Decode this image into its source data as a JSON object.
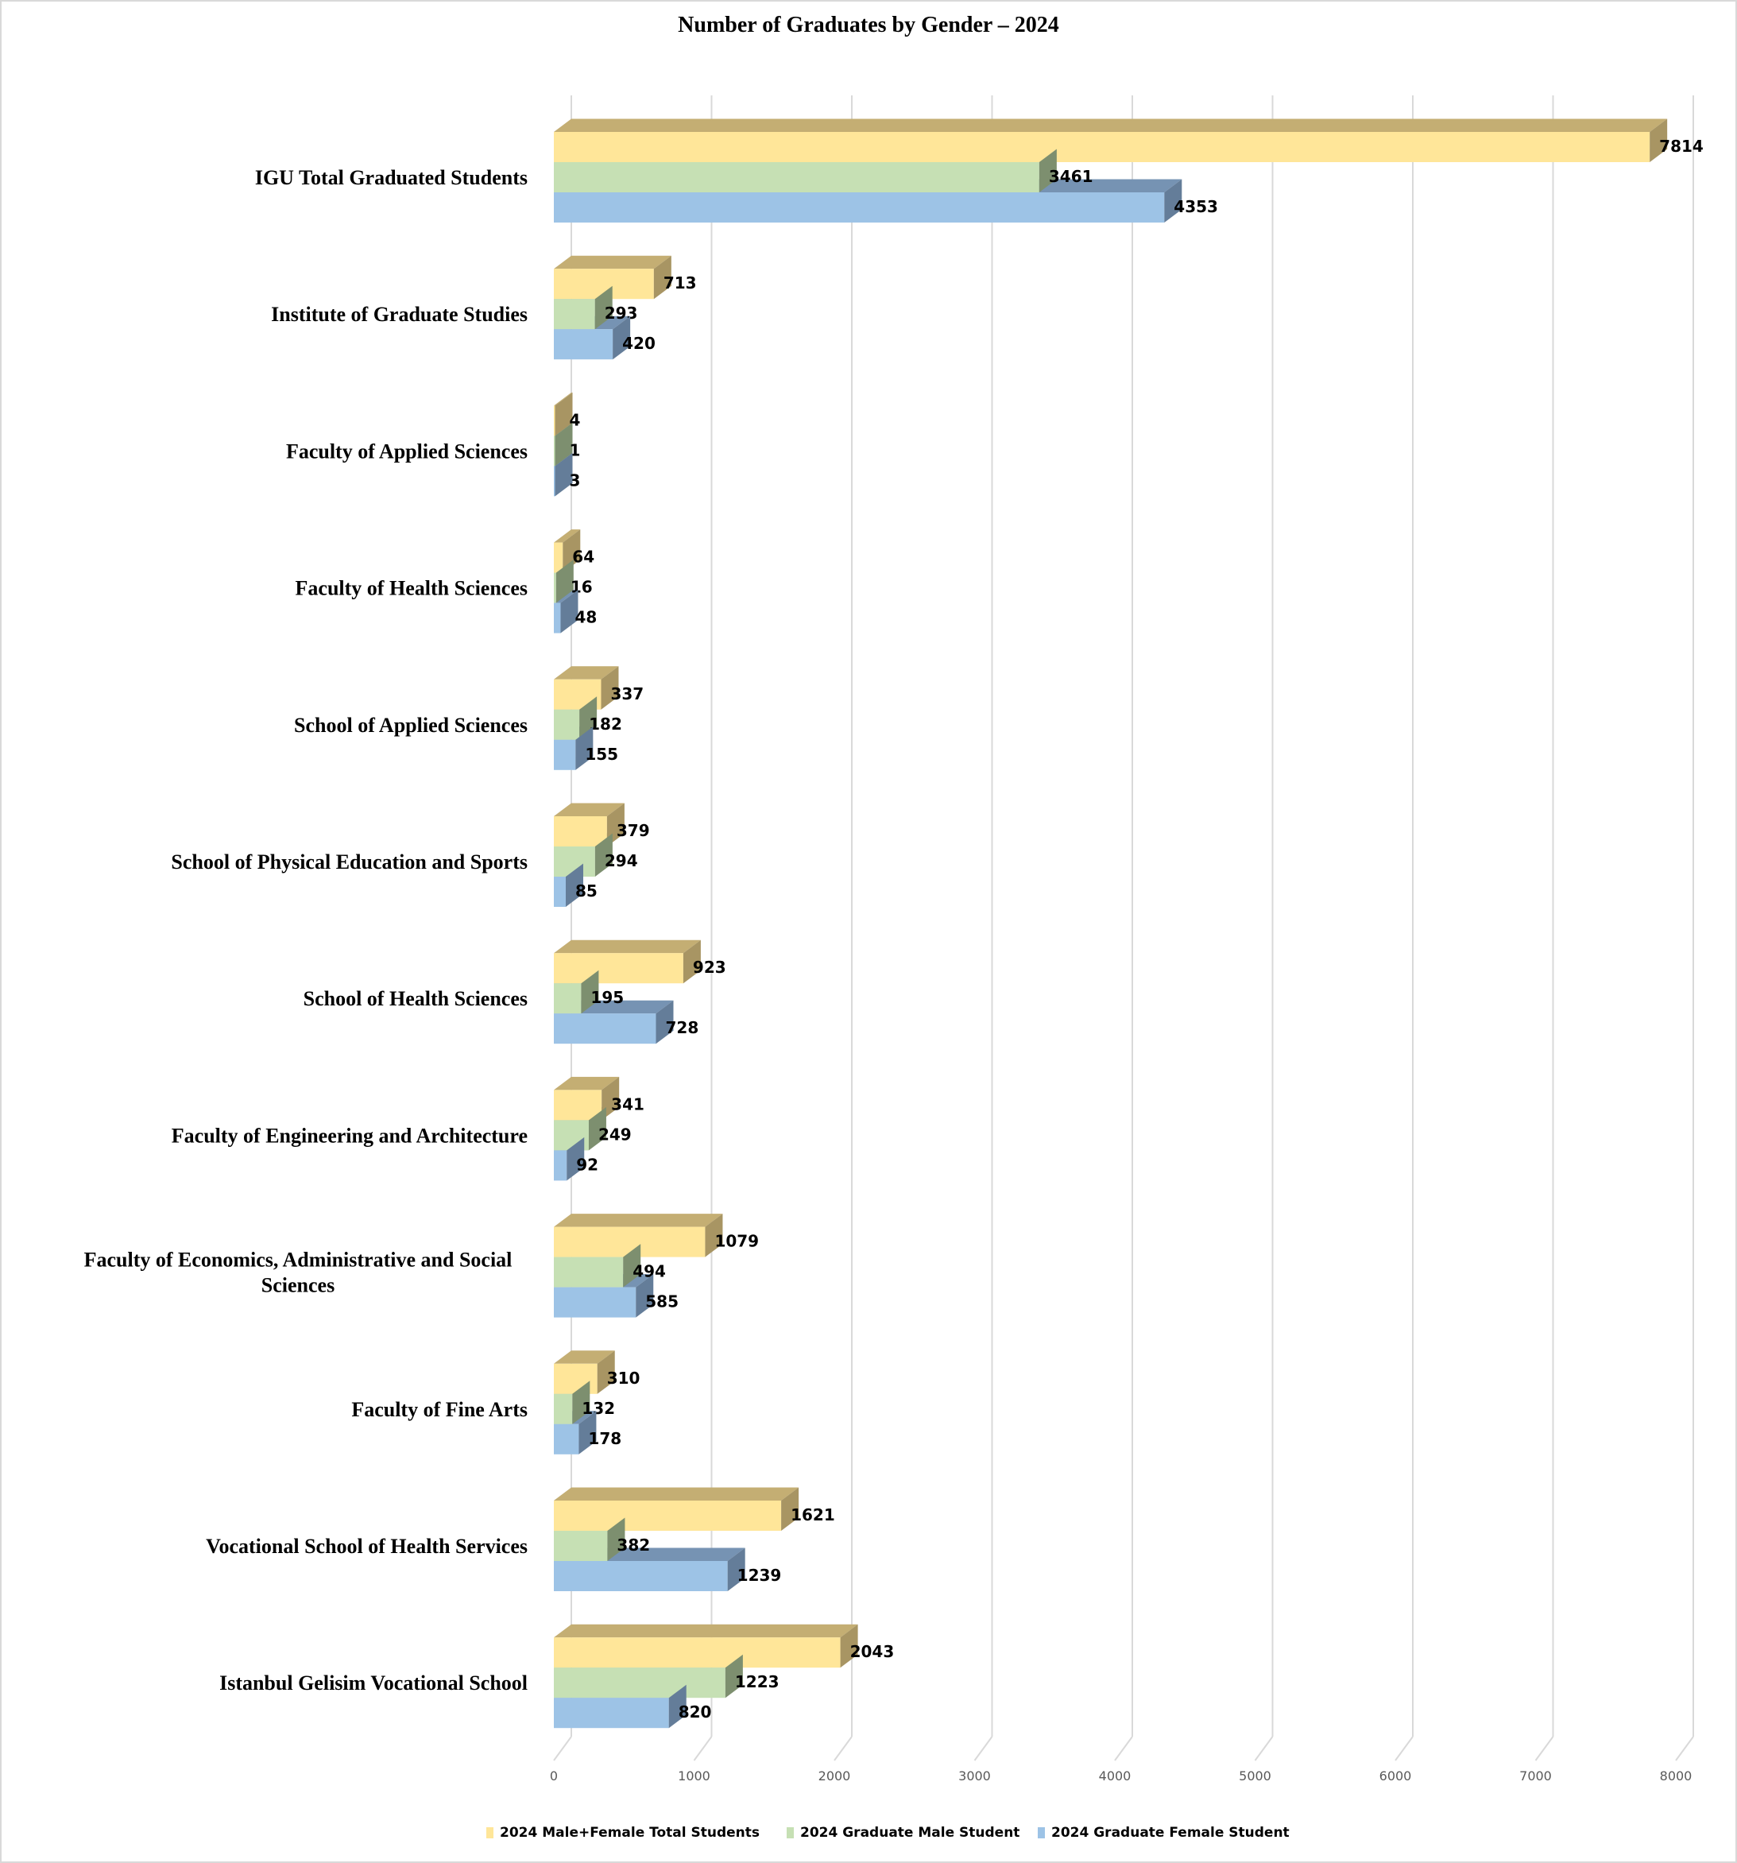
{
  "chart_data": {
    "type": "bar",
    "orientation": "horizontal",
    "style": "3d-clustered",
    "title": "Number of Graduates  by Gender – 2024",
    "xlabel": "",
    "ylabel": "",
    "xlim": [
      0,
      8000
    ],
    "xticks": [
      "0",
      "1000",
      "2000",
      "3000",
      "4000",
      "5000",
      "6000",
      "7000",
      "8000"
    ],
    "grid": "vertical",
    "legend_position": "bottom",
    "categories": [
      "IGU Total Graduated Students",
      "Institute of Graduate Studies",
      "Faculty of Applied Sciences",
      "Faculty of Health Sciences",
      "School of Applied Sciences",
      "School of Physical Education and Sports",
      "School of Health Sciences",
      "Faculty of Engineering and Architecture",
      "Faculty of Economics, Administrative and Social Sciences",
      "Faculty of Fine Arts",
      "Vocational School of Health Services",
      "Istanbul Gelisim Vocational School"
    ],
    "category_lines": [
      [
        "IGU Total Graduated Students"
      ],
      [
        "Institute of Graduate Studies"
      ],
      [
        "Faculty of Applied Sciences"
      ],
      [
        "Faculty of Health Sciences"
      ],
      [
        "School of Applied Sciences"
      ],
      [
        "School of Physical Education and Sports"
      ],
      [
        "School of Health Sciences"
      ],
      [
        "Faculty of Engineering and Architecture"
      ],
      [
        "Faculty of Economics, Administrative and Social",
        "Sciences"
      ],
      [
        "Faculty of Fine Arts"
      ],
      [
        "Vocational School of Health Services"
      ],
      [
        "Istanbul Gelisim Vocational School"
      ]
    ],
    "series": [
      {
        "name": "2024 Male+Female Total Students",
        "color": "#FFE699",
        "top": "#C4AE73",
        "side": "#A89563",
        "values": [
          7814,
          713,
          4,
          64,
          337,
          379,
          923,
          341,
          1079,
          310,
          1621,
          2043
        ]
      },
      {
        "name": "2024 Graduate Male Student",
        "color": "#C6E0B4",
        "top": "#8FA683",
        "side": "#7D8F6F",
        "values": [
          3461,
          293,
          1,
          16,
          182,
          294,
          195,
          249,
          494,
          132,
          382,
          1223
        ]
      },
      {
        "name": "2024 Graduate Female Student",
        "color": "#9DC3E6",
        "top": "#7693B3",
        "side": "#647D99",
        "values": [
          4353,
          420,
          3,
          48,
          155,
          85,
          728,
          92,
          585,
          178,
          1239,
          820
        ]
      }
    ]
  }
}
